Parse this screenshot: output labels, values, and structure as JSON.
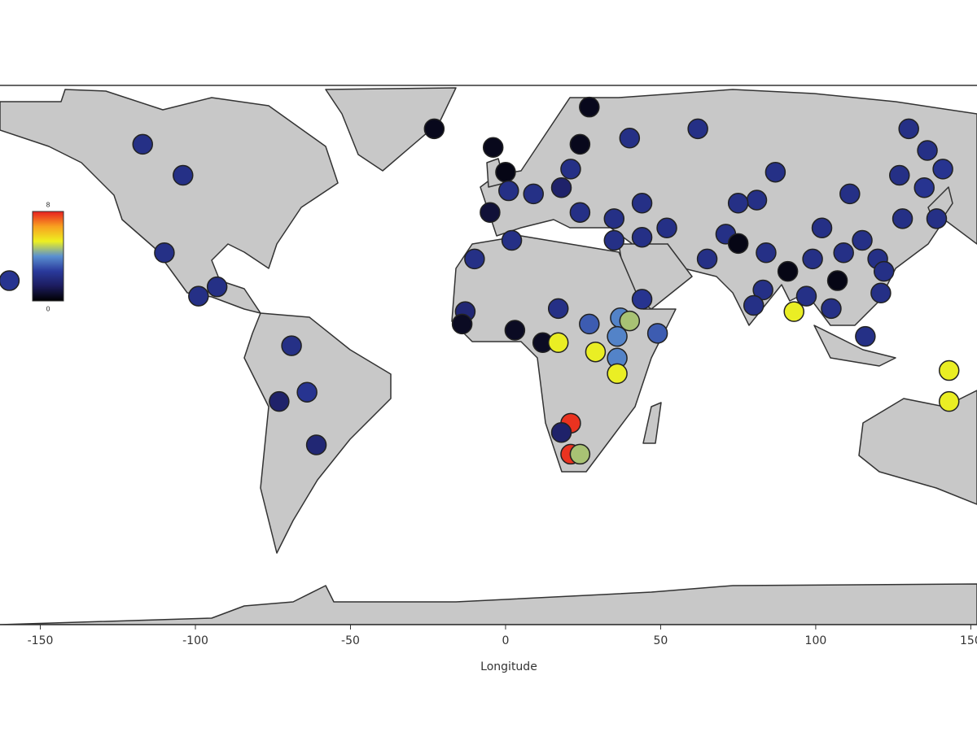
{
  "chart_data": {
    "type": "scatter",
    "xlabel": "Longitude",
    "xlim": [
      -163,
      152
    ],
    "ylim": [
      -90,
      84
    ],
    "xticks": [
      -150,
      -100,
      -50,
      0,
      50,
      100,
      150
    ],
    "x": [
      -117,
      -104,
      -110,
      -160,
      -99,
      -93,
      -69,
      -64,
      -73,
      -61,
      -23,
      27,
      -4,
      0,
      24,
      40,
      62,
      21,
      1,
      -5,
      9,
      18,
      24,
      35,
      44,
      2,
      -10,
      35,
      44,
      52,
      -13,
      -14,
      3,
      12,
      17,
      17,
      27,
      29,
      37,
      36,
      36,
      36,
      40,
      44,
      49,
      21,
      18,
      21,
      24,
      87,
      81,
      75,
      102,
      111,
      130,
      136,
      141,
      127,
      135,
      128,
      139,
      115,
      71,
      75,
      65,
      84,
      91,
      99,
      107,
      109,
      120,
      122,
      83,
      80,
      93,
      97,
      105,
      121,
      116,
      143,
      143
    ],
    "y": [
      65,
      55,
      30,
      21,
      16,
      19,
      0,
      -15,
      -18,
      -32,
      70,
      77,
      64,
      56,
      65,
      67,
      70,
      57,
      50,
      43,
      49,
      51,
      43,
      41,
      46,
      34,
      28,
      34,
      35,
      38,
      11,
      7,
      5,
      1,
      12,
      1,
      7,
      -2,
      9,
      3,
      -4,
      -9,
      8,
      15,
      4,
      -25,
      -28,
      -35,
      -35,
      56,
      47,
      46,
      38,
      49,
      70,
      63,
      57,
      55,
      51,
      41,
      41,
      34,
      36,
      33,
      28,
      30,
      24,
      28,
      21,
      30,
      28,
      24,
      18,
      13,
      11,
      16,
      12,
      17,
      3,
      -8,
      -18
    ],
    "values": [
      2.2,
      2.2,
      2.2,
      2.4,
      2.2,
      2.2,
      2.2,
      2.4,
      1.6,
      1.8,
      0.4,
      0.4,
      0.4,
      0.3,
      0.4,
      2.2,
      2.2,
      2.2,
      2.2,
      0.8,
      2.2,
      1.6,
      2.2,
      2.2,
      2.2,
      2.2,
      2.2,
      2.2,
      2.2,
      2.2,
      1.8,
      0.5,
      0.5,
      0.5,
      2.2,
      5.3,
      3.2,
      5.3,
      3.8,
      3.8,
      3.8,
      5.3,
      4.7,
      2.4,
      3.2,
      7.8,
      1.6,
      7.8,
      4.7,
      2.2,
      2.2,
      2.2,
      2.2,
      2.2,
      2.2,
      2.2,
      2.4,
      2.2,
      2.4,
      2.2,
      2.2,
      2.2,
      2.2,
      0.3,
      2.2,
      2.2,
      0.3,
      2.2,
      0.3,
      2.2,
      2.2,
      2.2,
      2.2,
      2.2,
      5.3,
      2.2,
      2.2,
      2.2,
      2.2,
      5.3,
      5.3
    ],
    "clim": [
      0,
      8
    ],
    "colorbar_ticks": [
      0,
      8
    ],
    "colormap": [
      "#000000",
      "#1c1c5e",
      "#2a3a9c",
      "#5a90d0",
      "#eef020",
      "#f8a020",
      "#e82020"
    ],
    "marker_edge_color": "#222222"
  }
}
